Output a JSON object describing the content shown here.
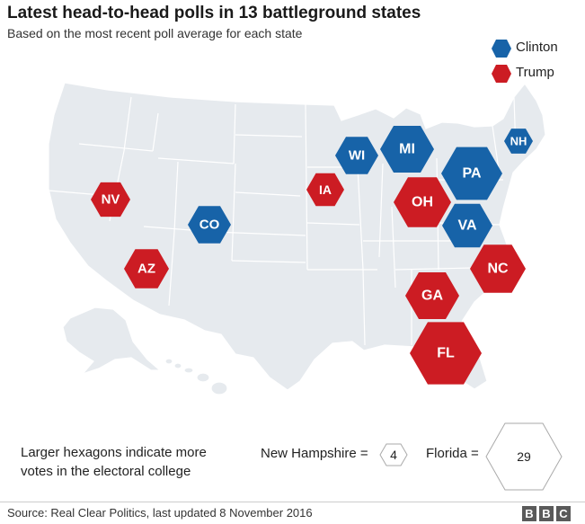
{
  "header": {
    "title": "Latest head-to-head polls in 13 battleground states",
    "subtitle": "Based on the most recent poll average for each state"
  },
  "legend": [
    {
      "label": "Clinton",
      "color": "#1763a8"
    },
    {
      "label": "Trump",
      "color": "#cc1c23"
    }
  ],
  "map_style": {
    "land_color": "#e6eaee",
    "border_color": "#ffffff"
  },
  "states": [
    {
      "abbr": "NV",
      "winner": "Trump"
    },
    {
      "abbr": "AZ",
      "winner": "Trump"
    },
    {
      "abbr": "CO",
      "winner": "Clinton"
    },
    {
      "abbr": "IA",
      "winner": "Trump"
    },
    {
      "abbr": "WI",
      "winner": "Clinton"
    },
    {
      "abbr": "MI",
      "winner": "Clinton"
    },
    {
      "abbr": "OH",
      "winner": "Trump"
    },
    {
      "abbr": "PA",
      "winner": "Clinton"
    },
    {
      "abbr": "VA",
      "winner": "Clinton"
    },
    {
      "abbr": "NH",
      "winner": "Clinton"
    },
    {
      "abbr": "NC",
      "winner": "Trump"
    },
    {
      "abbr": "GA",
      "winner": "Trump"
    },
    {
      "abbr": "FL",
      "winner": "Trump"
    }
  ],
  "size_key": {
    "note": "Larger hexagons indicate more votes in the electoral college",
    "small_label": "New Hampshire =",
    "small_value": "4",
    "large_label": "Florida =",
    "large_value": "29"
  },
  "footer": {
    "source": "Source: Real Clear Politics, last updated 8 November 2016",
    "logo_letters": [
      "B",
      "B",
      "C"
    ]
  }
}
